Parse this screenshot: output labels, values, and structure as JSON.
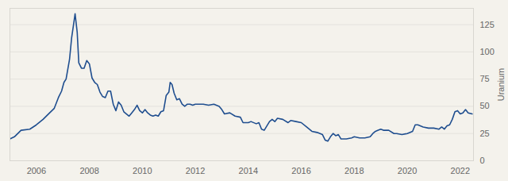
{
  "chart_data": {
    "type": "line",
    "y_label": "Uranium",
    "color": "#1f4e8f",
    "grid": true,
    "xlim": [
      2005,
      2022.5
    ],
    "xticks": [
      2006,
      2008,
      2010,
      2012,
      2014,
      2016,
      2018,
      2020,
      2022
    ],
    "ylim": [
      0,
      140
    ],
    "yticks": [
      0,
      25,
      50,
      75,
      100,
      125
    ],
    "x": [
      2005.0,
      2005.17,
      2005.42,
      2005.75,
      2006.0,
      2006.25,
      2006.5,
      2006.67,
      2006.83,
      2006.95,
      2007.04,
      2007.12,
      2007.25,
      2007.33,
      2007.42,
      2007.46,
      2007.54,
      2007.6,
      2007.7,
      2007.8,
      2007.9,
      2008.0,
      2008.1,
      2008.2,
      2008.3,
      2008.4,
      2008.5,
      2008.6,
      2008.7,
      2008.8,
      2008.9,
      2009.0,
      2009.1,
      2009.2,
      2009.3,
      2009.4,
      2009.5,
      2009.6,
      2009.7,
      2009.8,
      2009.9,
      2010.0,
      2010.1,
      2010.2,
      2010.3,
      2010.4,
      2010.5,
      2010.6,
      2010.7,
      2010.8,
      2010.9,
      2011.0,
      2011.05,
      2011.12,
      2011.2,
      2011.3,
      2011.4,
      2011.5,
      2011.6,
      2011.7,
      2011.8,
      2011.9,
      2012.0,
      2012.3,
      2012.5,
      2012.7,
      2012.9,
      2013.0,
      2013.1,
      2013.3,
      2013.5,
      2013.7,
      2013.8,
      2014.0,
      2014.1,
      2014.3,
      2014.4,
      2014.5,
      2014.6,
      2014.7,
      2014.8,
      2014.9,
      2015.0,
      2015.1,
      2015.3,
      2015.5,
      2015.6,
      2015.8,
      2016.0,
      2016.2,
      2016.4,
      2016.6,
      2016.8,
      2016.9,
      2017.0,
      2017.1,
      2017.2,
      2017.3,
      2017.4,
      2017.5,
      2017.7,
      2017.9,
      2018.0,
      2018.2,
      2018.4,
      2018.6,
      2018.7,
      2018.8,
      2018.9,
      2019.0,
      2019.1,
      2019.3,
      2019.5,
      2019.6,
      2019.8,
      2020.0,
      2020.2,
      2020.3,
      2020.4,
      2020.6,
      2020.8,
      2021.0,
      2021.2,
      2021.3,
      2021.4,
      2021.5,
      2021.6,
      2021.7,
      2021.8,
      2021.9,
      2022.0,
      2022.1,
      2022.2,
      2022.3,
      2022.45
    ],
    "values": [
      20,
      22,
      28,
      29,
      33,
      38,
      44,
      48,
      58,
      64,
      72,
      75,
      93,
      113,
      128,
      135,
      118,
      90,
      85,
      85,
      92,
      89,
      76,
      72,
      70,
      63,
      59,
      58,
      64,
      64,
      52,
      46,
      54,
      51,
      45,
      43,
      41,
      44,
      47,
      51,
      46,
      44,
      47,
      44,
      42,
      41,
      42,
      41,
      45,
      46,
      60,
      63,
      72,
      70,
      62,
      56,
      57,
      52,
      50,
      52,
      52,
      51,
      52,
      52,
      51,
      52,
      50,
      47,
      43,
      44,
      41,
      40,
      35,
      35,
      36,
      34,
      35,
      29,
      28,
      32,
      36,
      38,
      36,
      39,
      38,
      35,
      37,
      36,
      35,
      31,
      27,
      26,
      24,
      19,
      18,
      22,
      25,
      23,
      24,
      20,
      20,
      21,
      22,
      21,
      21,
      22,
      25,
      27,
      28,
      29,
      28,
      28,
      25,
      25,
      24,
      25,
      27,
      33,
      33,
      31,
      30,
      30,
      29,
      31,
      29,
      32,
      33,
      38,
      45,
      46,
      43,
      44,
      47,
      44,
      43
    ]
  }
}
